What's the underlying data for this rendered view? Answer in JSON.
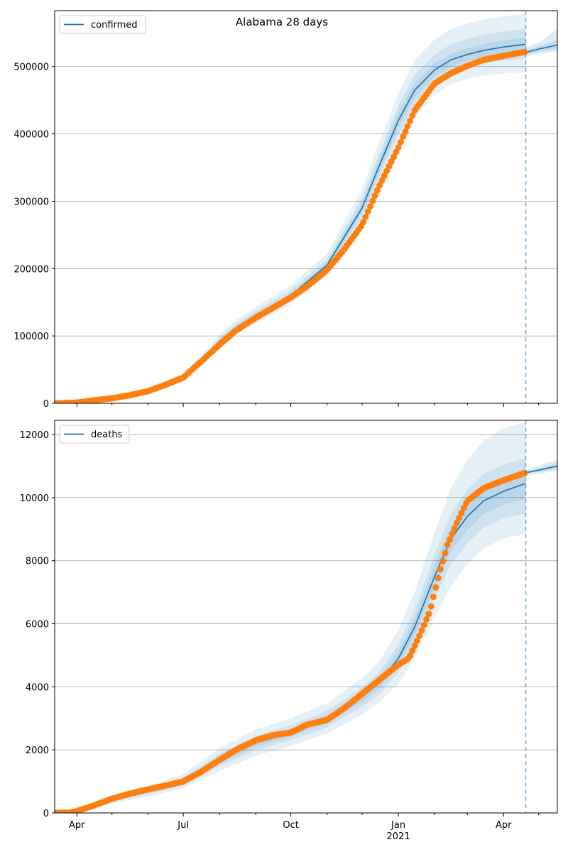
{
  "title": "Alabama 28 days",
  "colors": {
    "model_line": "#1f77b4",
    "observed_points": "#ff7f0e",
    "band": "#1f77b4",
    "grid": "#b0b0b0",
    "forecast_marker": "#1f77b4"
  },
  "x_axis": {
    "tick_labels": [
      {
        "date": "2020-04-01",
        "label": "Apr",
        "sublabel": ""
      },
      {
        "date": "2020-07-01",
        "label": "Jul",
        "sublabel": ""
      },
      {
        "date": "2020-10-01",
        "label": "Oct",
        "sublabel": ""
      },
      {
        "date": "2021-01-01",
        "label": "Jan",
        "sublabel": "2021"
      },
      {
        "date": "2021-04-01",
        "label": "Apr",
        "sublabel": ""
      }
    ],
    "xlim": [
      "2020-03-13",
      "2021-05-17"
    ],
    "forecast_start": "2021-04-20"
  },
  "chart_data": [
    {
      "type": "line",
      "legend": "confirmed",
      "legend_position": "top-left",
      "grid": "horizontal",
      "ylim": [
        0,
        583000
      ],
      "yticks": [
        0,
        100000,
        200000,
        300000,
        400000,
        500000
      ],
      "model": {
        "x": [
          "2020-03-13",
          "2020-04-01",
          "2020-05-01",
          "2020-06-01",
          "2020-07-01",
          "2020-07-15",
          "2020-08-01",
          "2020-08-15",
          "2020-09-01",
          "2020-10-01",
          "2020-11-01",
          "2020-12-01",
          "2020-12-15",
          "2021-01-01",
          "2021-01-15",
          "2021-02-01",
          "2021-02-15",
          "2021-03-01",
          "2021-03-15",
          "2021-04-01",
          "2021-04-20"
        ],
        "y": [
          0,
          1500,
          7000,
          19000,
          38000,
          60000,
          92000,
          112000,
          130000,
          160000,
          205000,
          290000,
          350000,
          420000,
          465000,
          495000,
          510000,
          518000,
          524000,
          529000,
          533000
        ]
      },
      "forecast": {
        "x": [
          "2021-04-20",
          "2021-05-01",
          "2021-05-17"
        ],
        "y": [
          521000,
          526000,
          532000
        ]
      },
      "bands": [
        {
          "x": [
            "2020-03-13",
            "2020-04-01",
            "2020-05-01",
            "2020-06-01",
            "2020-07-01",
            "2020-07-15",
            "2020-08-01",
            "2020-08-15",
            "2020-09-01",
            "2020-10-01",
            "2020-11-01",
            "2020-12-01",
            "2020-12-15",
            "2021-01-01",
            "2021-01-15",
            "2021-02-01",
            "2021-02-15",
            "2021-03-01",
            "2021-03-15",
            "2021-04-01",
            "2021-04-20"
          ],
          "low": [
            0,
            1000,
            5000,
            16000,
            33000,
            53000,
            83000,
            102000,
            118000,
            147000,
            190000,
            265000,
            318000,
            380000,
            425000,
            458000,
            474000,
            482000,
            487000,
            490000,
            492000
          ],
          "high": [
            0,
            2000,
            9000,
            23000,
            44000,
            68000,
            102000,
            123000,
            143000,
            175000,
            222000,
            318000,
            385000,
            460000,
            510000,
            540000,
            556000,
            564000,
            570000,
            575000,
            578000
          ]
        },
        {
          "x": [
            "2020-03-13",
            "2020-04-01",
            "2020-05-01",
            "2020-06-01",
            "2020-07-01",
            "2020-07-15",
            "2020-08-01",
            "2020-08-15",
            "2020-09-01",
            "2020-10-01",
            "2020-11-01",
            "2020-12-01",
            "2020-12-15",
            "2021-01-01",
            "2021-01-15",
            "2021-02-01",
            "2021-02-15",
            "2021-03-01",
            "2021-03-15",
            "2021-04-01",
            "2021-04-20"
          ],
          "low": [
            0,
            1200,
            5800,
            17300,
            35000,
            56000,
            87000,
            106000,
            123000,
            153000,
            197000,
            276000,
            333000,
            398000,
            443000,
            475000,
            491000,
            499000,
            505000,
            509000,
            512000
          ],
          "high": [
            0,
            1800,
            8200,
            21000,
            41000,
            64000,
            97000,
            118000,
            137000,
            168000,
            214000,
            305000,
            368000,
            442000,
            488000,
            518000,
            533000,
            541000,
            547000,
            552000,
            556000
          ]
        },
        {
          "x": [
            "2020-03-13",
            "2020-04-01",
            "2020-05-01",
            "2020-06-01",
            "2020-07-01",
            "2020-07-15",
            "2020-08-01",
            "2020-08-15",
            "2020-09-01",
            "2020-10-01",
            "2020-11-01",
            "2020-12-01",
            "2020-12-15",
            "2021-01-01",
            "2021-01-15",
            "2021-02-01",
            "2021-02-15",
            "2021-03-01",
            "2021-03-15",
            "2021-04-01",
            "2021-04-20"
          ],
          "low": [
            0,
            1350,
            6400,
            18100,
            36500,
            58000,
            89500,
            109000,
            126500,
            156500,
            201000,
            283000,
            341500,
            409000,
            454000,
            485000,
            500500,
            508500,
            514500,
            519000,
            522500
          ],
          "high": [
            0,
            1650,
            7600,
            19900,
            39500,
            62000,
            94500,
            115000,
            133500,
            163500,
            209000,
            297000,
            358500,
            431000,
            476000,
            505000,
            519500,
            527500,
            533500,
            539000,
            543500
          ]
        }
      ],
      "forecast_bands": [
        {
          "x": [
            "2021-04-20",
            "2021-05-01",
            "2021-05-17"
          ],
          "low": [
            515000,
            519000,
            522000
          ],
          "high": [
            528000,
            536000,
            556000
          ]
        },
        {
          "x": [
            "2021-04-20",
            "2021-05-01",
            "2021-05-17"
          ],
          "low": [
            518000,
            522000,
            526000
          ],
          "high": [
            524000,
            530000,
            540000
          ]
        }
      ],
      "observed": {
        "x": [
          "2020-03-13",
          "2020-04-01",
          "2020-04-15",
          "2020-05-01",
          "2020-05-15",
          "2020-06-01",
          "2020-06-15",
          "2020-07-01",
          "2020-07-15",
          "2020-08-01",
          "2020-08-15",
          "2020-09-01",
          "2020-09-15",
          "2020-10-01",
          "2020-10-15",
          "2020-11-01",
          "2020-11-15",
          "2020-12-01",
          "2020-12-15",
          "2021-01-01",
          "2021-01-15",
          "2021-02-01",
          "2021-02-15",
          "2021-03-01",
          "2021-03-15",
          "2021-04-01",
          "2021-04-20"
        ],
        "y": [
          5,
          1100,
          4400,
          7400,
          11500,
          18000,
          27000,
          38000,
          60000,
          87000,
          108000,
          127000,
          141000,
          157000,
          174000,
          198000,
          227000,
          265000,
          320000,
          380000,
          435000,
          475000,
          490000,
          501000,
          510000,
          516000,
          522000
        ]
      }
    },
    {
      "type": "line",
      "legend": "deaths",
      "legend_position": "top-left",
      "grid": "horizontal",
      "ylim": [
        0,
        12450
      ],
      "yticks": [
        0,
        2000,
        4000,
        6000,
        8000,
        10000,
        12000
      ],
      "model": {
        "x": [
          "2020-03-13",
          "2020-03-25",
          "2020-04-01",
          "2020-05-01",
          "2020-06-01",
          "2020-07-01",
          "2020-08-01",
          "2020-09-01",
          "2020-10-01",
          "2020-11-01",
          "2020-12-01",
          "2020-12-15",
          "2021-01-01",
          "2021-01-15",
          "2021-02-01",
          "2021-02-15",
          "2021-03-01",
          "2021-03-15",
          "2021-04-01",
          "2021-04-20"
        ],
        "y": [
          0,
          0,
          60,
          420,
          680,
          1000,
          1680,
          2220,
          2540,
          2980,
          3680,
          4100,
          4900,
          5900,
          7500,
          8700,
          9400,
          9900,
          10200,
          10450
        ]
      },
      "forecast": {
        "x": [
          "2021-04-20",
          "2021-05-01",
          "2021-05-17"
        ],
        "y": [
          10790,
          10870,
          11000
        ]
      },
      "bands": [
        {
          "x": [
            "2020-03-13",
            "2020-03-25",
            "2020-04-01",
            "2020-05-01",
            "2020-06-01",
            "2020-07-01",
            "2020-08-01",
            "2020-09-01",
            "2020-10-01",
            "2020-11-01",
            "2020-12-01",
            "2020-12-15",
            "2021-01-01",
            "2021-01-15",
            "2021-02-01",
            "2021-02-15",
            "2021-03-01",
            "2021-03-15",
            "2021-04-01",
            "2021-04-20"
          ],
          "low": [
            0,
            0,
            40,
            300,
            520,
            780,
            1330,
            1820,
            2120,
            2520,
            3120,
            3480,
            4100,
            4900,
            6200,
            7200,
            7900,
            8400,
            8700,
            8850
          ],
          "high": [
            0,
            0,
            80,
            540,
            850,
            1230,
            2050,
            2650,
            3000,
            3480,
            4280,
            4780,
            5800,
            7000,
            8900,
            10300,
            11200,
            11800,
            12200,
            12400
          ]
        },
        {
          "x": [
            "2020-03-13",
            "2020-03-25",
            "2020-04-01",
            "2020-05-01",
            "2020-06-01",
            "2020-07-01",
            "2020-08-01",
            "2020-09-01",
            "2020-10-01",
            "2020-11-01",
            "2020-12-01",
            "2020-12-15",
            "2021-01-01",
            "2021-01-15",
            "2021-02-01",
            "2021-02-15",
            "2021-03-01",
            "2021-03-15",
            "2021-04-01",
            "2021-04-20"
          ],
          "low": [
            0,
            0,
            48,
            350,
            590,
            870,
            1480,
            1990,
            2300,
            2720,
            3380,
            3760,
            4450,
            5350,
            6800,
            7880,
            8550,
            9050,
            9350,
            9500
          ],
          "high": [
            0,
            0,
            72,
            490,
            770,
            1130,
            1880,
            2450,
            2780,
            3240,
            3980,
            4440,
            5350,
            6450,
            8200,
            9500,
            10250,
            10750,
            11050,
            11250
          ]
        },
        {
          "x": [
            "2020-03-13",
            "2020-03-25",
            "2020-04-01",
            "2020-05-01",
            "2020-06-01",
            "2020-07-01",
            "2020-08-01",
            "2020-09-01",
            "2020-10-01",
            "2020-11-01",
            "2020-12-01",
            "2020-12-15",
            "2021-01-01",
            "2021-01-15",
            "2021-02-01",
            "2021-02-15",
            "2021-03-01",
            "2021-03-15",
            "2021-04-01",
            "2021-04-20"
          ],
          "low": [
            0,
            0,
            54,
            385,
            635,
            935,
            1580,
            2100,
            2420,
            2850,
            3530,
            3930,
            4680,
            5620,
            7150,
            8300,
            8980,
            9480,
            9770,
            9960
          ],
          "high": [
            0,
            0,
            66,
            455,
            725,
            1065,
            1780,
            2340,
            2660,
            3110,
            3830,
            4270,
            5120,
            6180,
            7850,
            9100,
            9820,
            10320,
            10630,
            10940
          ]
        }
      ],
      "forecast_bands": [
        {
          "x": [
            "2021-04-20",
            "2021-05-01",
            "2021-05-17"
          ],
          "low": [
            10700,
            10760,
            10850
          ],
          "high": [
            10880,
            11000,
            11230
          ]
        },
        {
          "x": [
            "2021-04-20",
            "2021-05-01",
            "2021-05-17"
          ],
          "low": [
            10750,
            10820,
            10920
          ],
          "high": [
            10830,
            10920,
            11100
          ]
        }
      ],
      "observed": {
        "x": [
          "2020-03-13",
          "2020-03-25",
          "2020-04-01",
          "2020-04-15",
          "2020-05-01",
          "2020-05-15",
          "2020-06-01",
          "2020-06-15",
          "2020-07-01",
          "2020-07-15",
          "2020-08-01",
          "2020-08-15",
          "2020-09-01",
          "2020-09-15",
          "2020-10-01",
          "2020-10-15",
          "2020-11-01",
          "2020-11-15",
          "2020-12-01",
          "2020-12-15",
          "2021-01-01",
          "2021-01-10",
          "2021-01-20",
          "2021-01-28",
          "2021-02-05",
          "2021-02-12",
          "2021-02-20",
          "2021-03-01",
          "2021-03-15",
          "2021-04-01",
          "2021-04-20"
        ],
        "y": [
          5,
          5,
          60,
          230,
          450,
          600,
          750,
          860,
          1000,
          1280,
          1680,
          2000,
          2300,
          2460,
          2550,
          2800,
          2950,
          3300,
          3780,
          4200,
          4700,
          4900,
          5700,
          6400,
          7600,
          8500,
          9200,
          9900,
          10300,
          10550,
          10790
        ]
      }
    }
  ]
}
